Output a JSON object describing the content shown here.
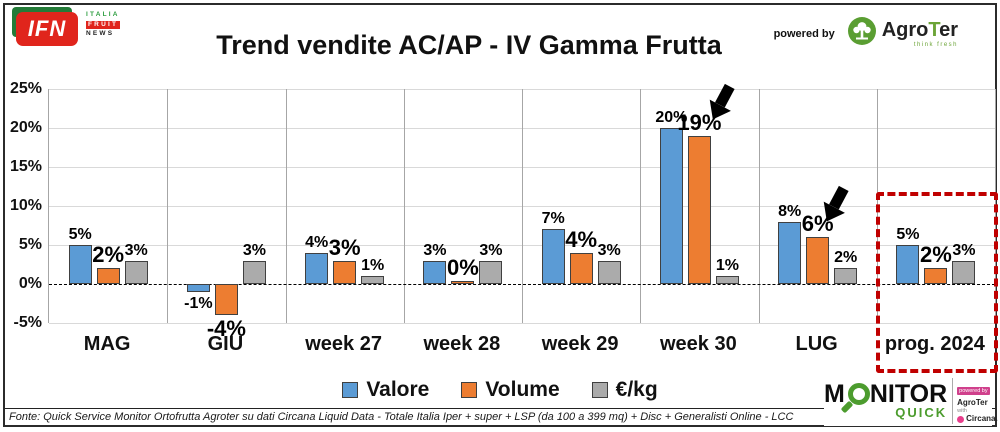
{
  "header": {
    "title": "Trend vendite AC/AP - IV Gamma Frutta",
    "ifn": {
      "main": "IFN",
      "italia": "ITALIA",
      "fruit": "FRUIT",
      "news": "NEWS"
    },
    "powered_by": "powered by",
    "agroter": {
      "prefix": "Agro",
      "t": "T",
      "suffix": "er",
      "tagline": "think fresh"
    }
  },
  "chart_data": {
    "type": "bar",
    "title": "Trend vendite AC/AP - IV Gamma Frutta",
    "categories": [
      "MAG",
      "GIU",
      "week 27",
      "week 28",
      "week 29",
      "week 30",
      "LUG",
      "prog. 2024"
    ],
    "series": [
      {
        "name": "Valore",
        "color": "#5b9bd5",
        "values": [
          5,
          -1,
          4,
          3,
          7,
          20,
          8,
          5
        ]
      },
      {
        "name": "Volume",
        "color": "#ed7d31",
        "values": [
          2,
          -4,
          3,
          0,
          4,
          19,
          6,
          2
        ]
      },
      {
        "name": "€/kg",
        "color": "#ababab",
        "values": [
          3,
          3,
          1,
          3,
          3,
          1,
          2,
          3
        ]
      }
    ],
    "ylim": [
      -5,
      25
    ],
    "yticks": [
      25,
      20,
      15,
      10,
      5,
      0,
      -5
    ],
    "ytick_suffix": "%",
    "grid": true,
    "zero_line": "dashed",
    "legend_position": "bottom",
    "annotations": [
      {
        "type": "arrow",
        "target": "week 30 Volume 19%"
      },
      {
        "type": "arrow",
        "target": "LUG Volume 6%"
      },
      {
        "type": "dashed-box",
        "color": "#c00000",
        "target": "prog. 2024"
      }
    ]
  },
  "footer": {
    "source": "Fonte: Quick Service Monitor Ortofrutta Agroter su dati Circana Liquid Data - Totale Italia Iper + super + LSP (da 100 a 399 mq) + Disc + Generalisti Online - LCC",
    "monitor": {
      "m": "M",
      "rest": "NITOR",
      "quick": "QUICK",
      "powered_by": "powered by",
      "agroter": "AgroTer",
      "with": "with",
      "circana": "Circana."
    }
  }
}
